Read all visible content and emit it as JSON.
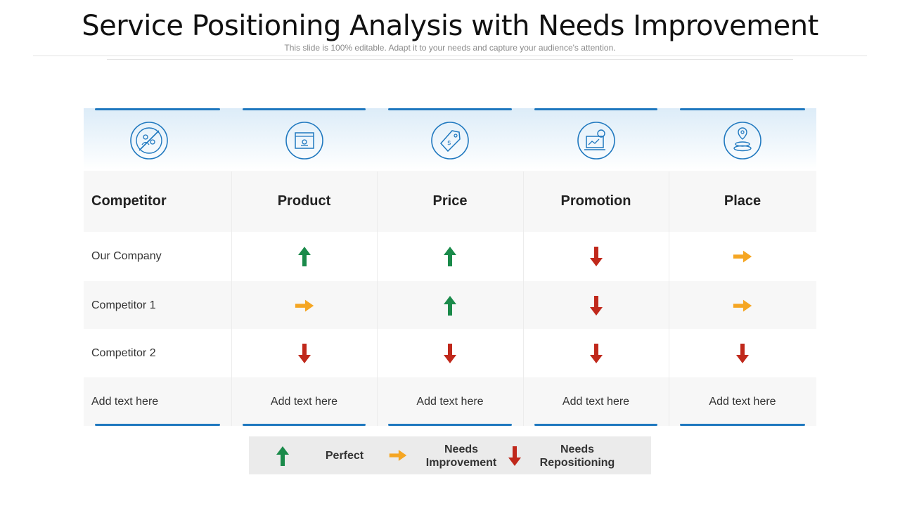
{
  "slide": {
    "title": "Service Positioning Analysis with Needs Improvement",
    "subtitle": "This slide is 100% editable. Adapt it to your needs and capture your audience's attention."
  },
  "table": {
    "columns": [
      {
        "header": "Competitor",
        "icon": "no-people-icon"
      },
      {
        "header": "Product",
        "icon": "product-box-icon"
      },
      {
        "header": "Price",
        "icon": "price-tag-icon"
      },
      {
        "header": "Promotion",
        "icon": "promotion-monitor-icon"
      },
      {
        "header": "Place",
        "icon": "location-pin-icon"
      }
    ],
    "rows": [
      {
        "label": "Our Company",
        "ratings": [
          "up",
          "up",
          "down",
          "right"
        ]
      },
      {
        "label": "Competitor 1",
        "ratings": [
          "right",
          "up",
          "down",
          "right"
        ]
      },
      {
        "label": "Competitor 2",
        "ratings": [
          "down",
          "down",
          "down",
          "down"
        ]
      }
    ],
    "footer": [
      "Add text here",
      "Add text here",
      "Add text here",
      "Add text here",
      "Add text here"
    ]
  },
  "legend": {
    "perfect": "Perfect",
    "needs_improvement_1": "Needs",
    "needs_improvement_2": "Improvement",
    "needs_repositioning_1": "Needs",
    "needs_repositioning_2": "Repositioning"
  },
  "colors": {
    "accent": "#1f78bf",
    "up": "#1a8a4a",
    "right": "#f5a623",
    "down": "#c0281b"
  }
}
